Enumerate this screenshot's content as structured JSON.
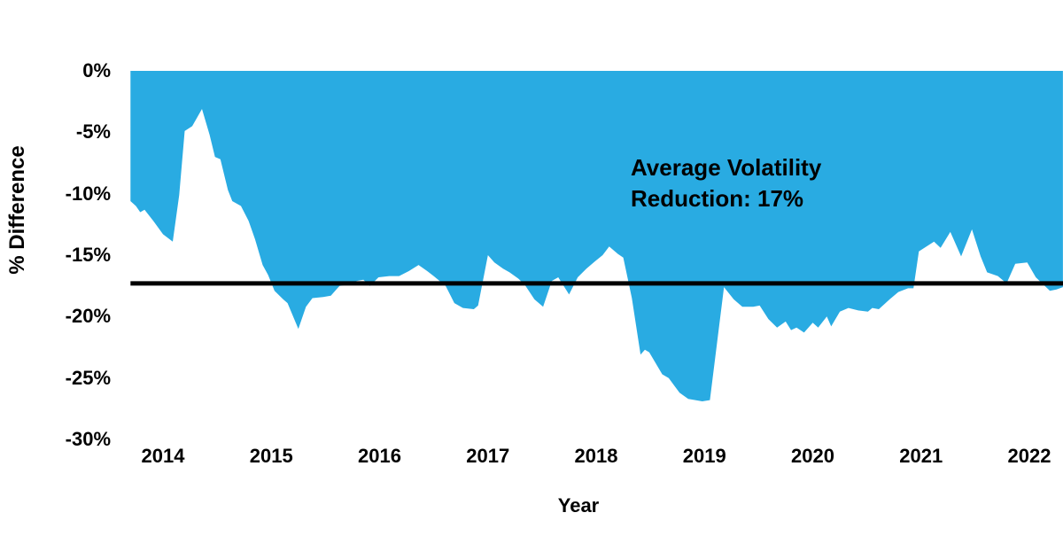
{
  "chart_data": {
    "type": "area",
    "title": "",
    "xlabel": "Year",
    "ylabel": "% Difference",
    "x_ticks": {
      "values": [
        2014,
        2015,
        2016,
        2017,
        2018,
        2019,
        2020,
        2021,
        2022
      ],
      "labels": [
        "2014",
        "2015",
        "2016",
        "2017",
        "2018",
        "2019",
        "2020",
        "2021",
        "2022"
      ]
    },
    "y_ticks": {
      "values": [
        0,
        -5,
        -10,
        -15,
        -20,
        -25,
        -30
      ],
      "labels": [
        "0%",
        "-5%",
        "-10%",
        "-15%",
        "-20%",
        "-25%",
        "-30%"
      ]
    },
    "x_range": [
      2013.7,
      2022.31
    ],
    "y_range": [
      -30,
      0
    ],
    "grid": false,
    "legend": "none",
    "annotation": {
      "line1": "Average Volatility",
      "line2": "Reduction: 17%"
    },
    "average_line": {
      "value": -17.3,
      "label_value": "17%"
    },
    "colors": {
      "area": "#29ABE2",
      "average_line": "#000000",
      "text": "#000000",
      "background": "#FFFFFF"
    },
    "series": [
      {
        "name": "% Difference",
        "points": [
          [
            2013.7,
            -10.6
          ],
          [
            2013.75,
            -11.0
          ],
          [
            2013.79,
            -11.5
          ],
          [
            2013.83,
            -11.3
          ],
          [
            2013.91,
            -12.2
          ],
          [
            2014.0,
            -13.3
          ],
          [
            2014.09,
            -13.9
          ],
          [
            2014.15,
            -10.1
          ],
          [
            2014.2,
            -4.9
          ],
          [
            2014.27,
            -4.5
          ],
          [
            2014.36,
            -3.1
          ],
          [
            2014.43,
            -5.2
          ],
          [
            2014.48,
            -7.0
          ],
          [
            2014.53,
            -7.2
          ],
          [
            2014.6,
            -9.7
          ],
          [
            2014.64,
            -10.6
          ],
          [
            2014.72,
            -11.0
          ],
          [
            2014.79,
            -12.2
          ],
          [
            2014.85,
            -13.7
          ],
          [
            2014.92,
            -15.8
          ],
          [
            2014.97,
            -16.6
          ],
          [
            2015.03,
            -17.9
          ],
          [
            2015.11,
            -18.6
          ],
          [
            2015.15,
            -18.9
          ],
          [
            2015.25,
            -21.0
          ],
          [
            2015.32,
            -19.2
          ],
          [
            2015.38,
            -18.5
          ],
          [
            2015.48,
            -18.4
          ],
          [
            2015.55,
            -18.3
          ],
          [
            2015.63,
            -17.5
          ],
          [
            2015.71,
            -17.4
          ],
          [
            2015.79,
            -17.1
          ],
          [
            2015.85,
            -17.0
          ],
          [
            2015.91,
            -17.5
          ],
          [
            2015.99,
            -16.8
          ],
          [
            2016.09,
            -16.7
          ],
          [
            2016.18,
            -16.7
          ],
          [
            2016.27,
            -16.3
          ],
          [
            2016.36,
            -15.8
          ],
          [
            2016.44,
            -16.3
          ],
          [
            2016.5,
            -16.7
          ],
          [
            2016.61,
            -17.5
          ],
          [
            2016.69,
            -18.9
          ],
          [
            2016.77,
            -19.3
          ],
          [
            2016.87,
            -19.4
          ],
          [
            2016.91,
            -19.1
          ],
          [
            2017.0,
            -15.0
          ],
          [
            2017.06,
            -15.6
          ],
          [
            2017.14,
            -16.1
          ],
          [
            2017.2,
            -16.4
          ],
          [
            2017.28,
            -16.9
          ],
          [
            2017.34,
            -17.4
          ],
          [
            2017.43,
            -18.6
          ],
          [
            2017.51,
            -19.2
          ],
          [
            2017.59,
            -17.1
          ],
          [
            2017.65,
            -16.8
          ],
          [
            2017.75,
            -18.2
          ],
          [
            2017.83,
            -16.8
          ],
          [
            2017.91,
            -16.1
          ],
          [
            2017.99,
            -15.5
          ],
          [
            2018.06,
            -15.0
          ],
          [
            2018.12,
            -14.3
          ],
          [
            2018.2,
            -14.9
          ],
          [
            2018.25,
            -15.2
          ],
          [
            2018.33,
            -18.5
          ],
          [
            2018.41,
            -23.1
          ],
          [
            2018.45,
            -22.7
          ],
          [
            2018.49,
            -22.9
          ],
          [
            2018.61,
            -24.7
          ],
          [
            2018.67,
            -25.0
          ],
          [
            2018.77,
            -26.2
          ],
          [
            2018.85,
            -26.7
          ],
          [
            2018.98,
            -26.9
          ],
          [
            2019.05,
            -26.8
          ],
          [
            2019.18,
            -17.6
          ],
          [
            2019.27,
            -18.6
          ],
          [
            2019.35,
            -19.2
          ],
          [
            2019.45,
            -19.2
          ],
          [
            2019.51,
            -19.1
          ],
          [
            2019.59,
            -20.2
          ],
          [
            2019.67,
            -20.9
          ],
          [
            2019.75,
            -20.4
          ],
          [
            2019.8,
            -21.1
          ],
          [
            2019.85,
            -20.9
          ],
          [
            2019.92,
            -21.3
          ],
          [
            2020.0,
            -20.5
          ],
          [
            2020.05,
            -20.9
          ],
          [
            2020.13,
            -20.0
          ],
          [
            2020.17,
            -20.8
          ],
          [
            2020.25,
            -19.6
          ],
          [
            2020.33,
            -19.3
          ],
          [
            2020.42,
            -19.5
          ],
          [
            2020.51,
            -19.6
          ],
          [
            2020.55,
            -19.3
          ],
          [
            2020.61,
            -19.4
          ],
          [
            2020.71,
            -18.6
          ],
          [
            2020.79,
            -18.0
          ],
          [
            2020.88,
            -17.7
          ],
          [
            2020.93,
            -17.7
          ],
          [
            2020.98,
            -14.7
          ],
          [
            2021.12,
            -13.9
          ],
          [
            2021.18,
            -14.4
          ],
          [
            2021.27,
            -13.1
          ],
          [
            2021.37,
            -15.1
          ],
          [
            2021.47,
            -12.9
          ],
          [
            2021.55,
            -15.1
          ],
          [
            2021.61,
            -16.4
          ],
          [
            2021.71,
            -16.7
          ],
          [
            2021.79,
            -17.3
          ],
          [
            2021.87,
            -15.7
          ],
          [
            2021.98,
            -15.6
          ],
          [
            2022.06,
            -16.8
          ],
          [
            2022.13,
            -17.4
          ],
          [
            2022.19,
            -17.9
          ],
          [
            2022.25,
            -17.8
          ],
          [
            2022.31,
            -17.6
          ]
        ]
      }
    ]
  }
}
